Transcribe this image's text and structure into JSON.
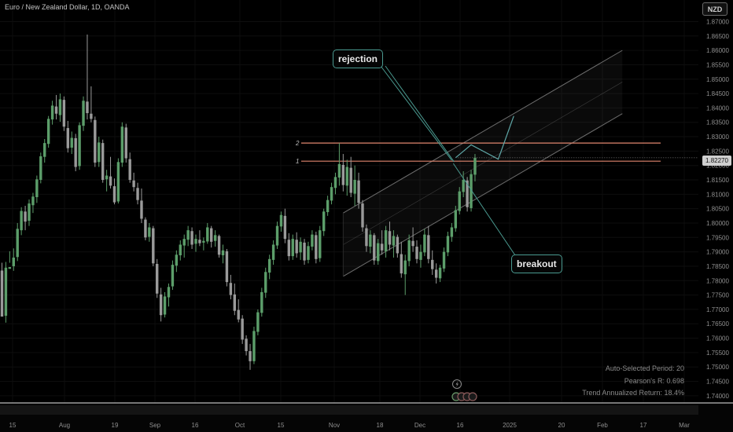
{
  "header": {
    "symbol_title": "Euro / New Zealand Dollar, 1D, OANDA",
    "currency": "NZD"
  },
  "annotations": {
    "rejection": "rejection",
    "breakout": "breakout",
    "level_1": "1",
    "level_2": "2"
  },
  "stats": {
    "period": "Auto-Selected Period: 20",
    "pearson": "Pearson's R: 0.698",
    "trend": "Trend Annualized Return: 18.4%"
  },
  "colors": {
    "background": "#000000",
    "up_candle": "#5c9e6a",
    "down_candle": "#9a9a9a",
    "level_line": "#e0866e",
    "channel": "#6e6e6e",
    "callout_border": "#4a9a90",
    "projection": "#5fa8a8"
  },
  "chart_data": {
    "type": "candlestick",
    "title": "Euro / New Zealand Dollar, 1D, OANDA",
    "ylim": [
      1.7375,
      1.8775
    ],
    "y_ticks": [
      "1.87000",
      "1.86500",
      "1.86000",
      "1.85500",
      "1.85000",
      "1.84500",
      "1.84000",
      "1.83500",
      "1.83000",
      "1.82500",
      "1.82000",
      "1.81500",
      "1.81000",
      "1.80500",
      "1.80000",
      "1.79500",
      "1.79000",
      "1.78500",
      "1.78000",
      "1.77500",
      "1.77000",
      "1.76500",
      "1.76000",
      "1.75500",
      "1.75000",
      "1.74500",
      "1.74000"
    ],
    "x_ticks": [
      "15",
      "Aug",
      "19",
      "Sep",
      "16",
      "Oct",
      "15",
      "Nov",
      "18",
      "Dec",
      "16",
      "2025",
      "20",
      "Feb",
      "17",
      "Mar"
    ],
    "last_price": "1.82270",
    "levels": [
      {
        "label": "2",
        "value": 1.8278
      },
      {
        "label": "1",
        "value": 1.8215
      }
    ],
    "candles_ohlc": [
      [
        1.7835,
        1.7862,
        1.7742,
        1.7675
      ],
      [
        1.7678,
        1.7865,
        1.7654,
        1.7845
      ],
      [
        1.7841,
        1.7902,
        1.7862,
        1.7847
      ],
      [
        1.785,
        1.7912,
        1.7834,
        1.788
      ],
      [
        1.7882,
        1.8,
        1.7868,
        1.798
      ],
      [
        1.7975,
        1.8055,
        1.7958,
        1.8042
      ],
      [
        1.804,
        1.806,
        1.7975,
        1.8005
      ],
      [
        1.8008,
        1.8082,
        1.799,
        1.8068
      ],
      [
        1.8062,
        1.8105,
        1.8035,
        1.8092
      ],
      [
        1.809,
        1.8165,
        1.807,
        1.8152
      ],
      [
        1.815,
        1.8245,
        1.8138,
        1.8232
      ],
      [
        1.823,
        1.8292,
        1.821,
        1.8278
      ],
      [
        1.8275,
        1.8372,
        1.8262,
        1.8362
      ],
      [
        1.836,
        1.8425,
        1.8342,
        1.8408
      ],
      [
        1.8405,
        1.8445,
        1.836,
        1.838
      ],
      [
        1.8375,
        1.845,
        1.8352,
        1.843
      ],
      [
        1.8428,
        1.844,
        1.832,
        1.8335
      ],
      [
        1.833,
        1.8355,
        1.8245,
        1.826
      ],
      [
        1.8262,
        1.8318,
        1.824,
        1.8296
      ],
      [
        1.8295,
        1.831,
        1.818,
        1.8195
      ],
      [
        1.8198,
        1.835,
        1.8185,
        1.834
      ],
      [
        1.8338,
        1.844,
        1.832,
        1.8425
      ],
      [
        1.8422,
        1.8655,
        1.836,
        1.8382
      ],
      [
        1.838,
        1.8475,
        1.835,
        1.8362
      ],
      [
        1.8358,
        1.837,
        1.8195,
        1.821
      ],
      [
        1.8212,
        1.83,
        1.8195,
        1.828
      ],
      [
        1.8278,
        1.829,
        1.814,
        1.815
      ],
      [
        1.8152,
        1.8185,
        1.811,
        1.8165
      ],
      [
        1.8162,
        1.823,
        1.812,
        1.813
      ],
      [
        1.8128,
        1.8155,
        1.8065,
        1.8072
      ],
      [
        1.8075,
        1.8225,
        1.8068,
        1.8212
      ],
      [
        1.821,
        1.835,
        1.8195,
        1.8335
      ],
      [
        1.8332,
        1.8345,
        1.821,
        1.8225
      ],
      [
        1.8222,
        1.8245,
        1.814,
        1.815
      ],
      [
        1.8148,
        1.8175,
        1.811,
        1.8125
      ],
      [
        1.8122,
        1.814,
        1.8065,
        1.808
      ],
      [
        1.8078,
        1.812,
        1.8,
        1.8015
      ],
      [
        1.8012,
        1.802,
        1.794,
        1.795
      ],
      [
        1.7952,
        1.8,
        1.7935,
        1.7985
      ],
      [
        1.7982,
        1.799,
        1.785,
        1.786
      ],
      [
        1.7858,
        1.7875,
        1.774,
        1.7755
      ],
      [
        1.7752,
        1.7775,
        1.7658,
        1.768
      ],
      [
        1.7682,
        1.776,
        1.7672,
        1.7745
      ],
      [
        1.7742,
        1.779,
        1.771,
        1.7778
      ],
      [
        1.778,
        1.787,
        1.7768,
        1.7855
      ],
      [
        1.7852,
        1.7905,
        1.783,
        1.789
      ],
      [
        1.7888,
        1.794,
        1.787,
        1.7925
      ],
      [
        1.7922,
        1.796,
        1.788,
        1.7945
      ],
      [
        1.7942,
        1.799,
        1.792,
        1.7975
      ],
      [
        1.7972,
        1.7985,
        1.791,
        1.7925
      ],
      [
        1.7928,
        1.796,
        1.79,
        1.7945
      ],
      [
        1.7942,
        1.7975,
        1.792,
        1.793
      ],
      [
        1.7932,
        1.795,
        1.7905,
        1.7938
      ],
      [
        1.7936,
        1.8,
        1.7928,
        1.7985
      ],
      [
        1.7982,
        1.799,
        1.7915,
        1.7935
      ],
      [
        1.7938,
        1.7975,
        1.7918,
        1.7958
      ],
      [
        1.7955,
        1.796,
        1.788,
        1.789
      ],
      [
        1.7888,
        1.7925,
        1.786,
        1.7905
      ],
      [
        1.7902,
        1.791,
        1.778,
        1.7795
      ],
      [
        1.7792,
        1.782,
        1.7735,
        1.775
      ],
      [
        1.7752,
        1.779,
        1.768,
        1.7695
      ],
      [
        1.7698,
        1.7735,
        1.7655,
        1.7665
      ],
      [
        1.7668,
        1.768,
        1.758,
        1.7595
      ],
      [
        1.7598,
        1.761,
        1.754,
        1.7555
      ],
      [
        1.7555,
        1.758,
        1.749,
        1.752
      ],
      [
        1.752,
        1.764,
        1.751,
        1.7625
      ],
      [
        1.7622,
        1.77,
        1.761,
        1.769
      ],
      [
        1.7688,
        1.7775,
        1.7675,
        1.776
      ],
      [
        1.7758,
        1.7845,
        1.774,
        1.783
      ],
      [
        1.7828,
        1.789,
        1.7805,
        1.7875
      ],
      [
        1.7872,
        1.794,
        1.7855,
        1.7925
      ],
      [
        1.7922,
        1.8005,
        1.791,
        1.799
      ],
      [
        1.7988,
        1.804,
        1.797,
        1.8028
      ],
      [
        1.8025,
        1.805,
        1.793,
        1.7945
      ],
      [
        1.7942,
        1.7965,
        1.787,
        1.7885
      ],
      [
        1.7885,
        1.796,
        1.7872,
        1.7945
      ],
      [
        1.7942,
        1.7968,
        1.788,
        1.7895
      ],
      [
        1.7898,
        1.795,
        1.7872,
        1.7935
      ],
      [
        1.7932,
        1.7945,
        1.7855,
        1.787
      ],
      [
        1.7872,
        1.7935,
        1.786,
        1.792
      ],
      [
        1.7918,
        1.7975,
        1.7905,
        1.796
      ],
      [
        1.7958,
        1.797,
        1.786,
        1.7875
      ],
      [
        1.7878,
        1.799,
        1.7865,
        1.7975
      ],
      [
        1.7972,
        1.805,
        1.7955,
        1.804
      ],
      [
        1.8038,
        1.8095,
        1.8025,
        1.808
      ],
      [
        1.8078,
        1.814,
        1.8065,
        1.8125
      ],
      [
        1.8122,
        1.8175,
        1.81,
        1.816
      ],
      [
        1.8158,
        1.8278,
        1.813,
        1.8205
      ],
      [
        1.8202,
        1.824,
        1.811,
        1.8132
      ],
      [
        1.813,
        1.822,
        1.8095,
        1.8195
      ],
      [
        1.8192,
        1.823,
        1.809,
        1.8105
      ],
      [
        1.8102,
        1.82,
        1.806,
        1.815
      ],
      [
        1.8148,
        1.8175,
        1.805,
        1.807
      ],
      [
        1.8068,
        1.808,
        1.797,
        1.7985
      ],
      [
        1.7982,
        1.7995,
        1.79,
        1.792
      ],
      [
        1.7918,
        1.7975,
        1.7895,
        1.796
      ],
      [
        1.7958,
        1.7965,
        1.7855,
        1.787
      ],
      [
        1.7868,
        1.7945,
        1.7855,
        1.793
      ],
      [
        1.7928,
        1.7975,
        1.789,
        1.7905
      ],
      [
        1.7902,
        1.799,
        1.788,
        1.7975
      ],
      [
        1.7972,
        1.8005,
        1.7905,
        1.7925
      ],
      [
        1.7922,
        1.7975,
        1.788,
        1.7955
      ],
      [
        1.7952,
        1.796,
        1.788,
        1.7895
      ],
      [
        1.7892,
        1.7935,
        1.781,
        1.7825
      ],
      [
        1.7822,
        1.789,
        1.775,
        1.787
      ],
      [
        1.7868,
        1.796,
        1.785,
        1.794
      ],
      [
        1.7938,
        1.7985,
        1.79,
        1.792
      ],
      [
        1.7918,
        1.794,
        1.786,
        1.7875
      ],
      [
        1.7872,
        1.7925,
        1.7845,
        1.79
      ],
      [
        1.7898,
        1.798,
        1.7885,
        1.796
      ],
      [
        1.7958,
        1.799,
        1.786,
        1.7875
      ],
      [
        1.7872,
        1.7905,
        1.782,
        1.784
      ],
      [
        1.7838,
        1.786,
        1.779,
        1.781
      ],
      [
        1.7808,
        1.7855,
        1.7795,
        1.7845
      ],
      [
        1.7842,
        1.7915,
        1.783,
        1.79
      ],
      [
        1.7898,
        1.797,
        1.7885,
        1.7955
      ],
      [
        1.7952,
        1.8,
        1.7935,
        1.7985
      ],
      [
        1.7982,
        1.806,
        1.797,
        1.8045
      ],
      [
        1.8042,
        1.8125,
        1.803,
        1.811
      ],
      [
        1.8108,
        1.818,
        1.809,
        1.815
      ],
      [
        1.8148,
        1.816,
        1.804,
        1.8055
      ],
      [
        1.8052,
        1.8185,
        1.804,
        1.817
      ],
      [
        1.8168,
        1.824,
        1.8145,
        1.8227
      ]
    ],
    "projection_points": [
      [
        117,
        1.8227
      ],
      [
        121,
        1.8272
      ],
      [
        128,
        1.8222
      ],
      [
        132,
        1.8372
      ]
    ],
    "channel": {
      "start_index": 88,
      "end_index": 160,
      "start_mid": 1.7925,
      "end_mid": 1.849,
      "half_width": 0.011
    },
    "stats_legend": "bottom-right"
  }
}
